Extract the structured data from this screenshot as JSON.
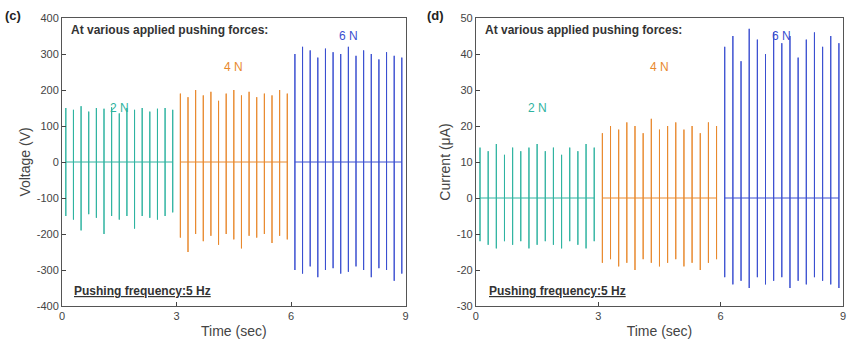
{
  "chart_data": [
    {
      "type": "line",
      "panel_label": "(c)",
      "annotations": [
        "At various applied pushing forces:",
        "Pushing frequency:5 Hz"
      ],
      "x_label": "Time (sec)",
      "y_label": "Voltage (V)",
      "xlim": [
        0,
        9
      ],
      "xticks": [
        0,
        3,
        6,
        9
      ],
      "ylim": [
        -400,
        400
      ],
      "yticks": [
        -400,
        -300,
        -200,
        -100,
        0,
        100,
        200,
        300,
        400
      ],
      "grid": false,
      "series": [
        {
          "name": "2 N",
          "color": "#2fb3a0",
          "x": [
            0.1,
            0.1,
            0.1,
            0.1,
            0.3,
            0.3,
            0.3,
            0.3,
            0.5,
            0.5,
            0.5,
            0.5,
            0.7,
            0.7,
            0.7,
            0.7,
            0.9,
            0.9,
            0.9,
            0.9,
            1.1,
            1.1,
            1.1,
            1.1,
            1.3,
            1.3,
            1.3,
            1.3,
            1.5,
            1.5,
            1.5,
            1.5,
            1.7,
            1.7,
            1.7,
            1.7,
            1.9,
            1.9,
            1.9,
            1.9,
            2.1,
            2.1,
            2.1,
            2.1,
            2.3,
            2.3,
            2.3,
            2.3,
            2.5,
            2.5,
            2.5,
            2.5,
            2.7,
            2.7,
            2.7,
            2.7,
            2.9,
            2.9,
            2.9,
            2.9
          ],
          "values": [
            0,
            150,
            -150,
            0,
            0,
            145,
            -160,
            0,
            0,
            155,
            -190,
            0,
            0,
            140,
            -145,
            0,
            0,
            150,
            -155,
            0,
            0,
            148,
            -200,
            0,
            0,
            152,
            -150,
            0,
            0,
            135,
            -160,
            0,
            0,
            150,
            -150,
            0,
            0,
            145,
            -185,
            0,
            0,
            150,
            -150,
            0,
            0,
            140,
            -155,
            0,
            0,
            148,
            -160,
            0,
            0,
            150,
            -150,
            0,
            0,
            145,
            -140,
            0
          ]
        },
        {
          "name": "4 N",
          "color": "#e8892e",
          "x": [
            3.1,
            3.1,
            3.1,
            3.1,
            3.3,
            3.3,
            3.3,
            3.3,
            3.5,
            3.5,
            3.5,
            3.5,
            3.7,
            3.7,
            3.7,
            3.7,
            3.9,
            3.9,
            3.9,
            3.9,
            4.1,
            4.1,
            4.1,
            4.1,
            4.3,
            4.3,
            4.3,
            4.3,
            4.5,
            4.5,
            4.5,
            4.5,
            4.7,
            4.7,
            4.7,
            4.7,
            4.9,
            4.9,
            4.9,
            4.9,
            5.1,
            5.1,
            5.1,
            5.1,
            5.3,
            5.3,
            5.3,
            5.3,
            5.5,
            5.5,
            5.5,
            5.5,
            5.7,
            5.7,
            5.7,
            5.7,
            5.9,
            5.9,
            5.9,
            5.9
          ],
          "values": [
            0,
            190,
            -210,
            0,
            0,
            180,
            -250,
            0,
            0,
            200,
            -200,
            0,
            0,
            185,
            -220,
            0,
            0,
            195,
            -205,
            0,
            0,
            170,
            -230,
            0,
            0,
            190,
            -200,
            0,
            0,
            200,
            -215,
            0,
            0,
            185,
            -240,
            0,
            0,
            195,
            -205,
            0,
            0,
            180,
            -210,
            0,
            0,
            190,
            -200,
            0,
            0,
            185,
            -225,
            0,
            0,
            200,
            -205,
            0,
            0,
            190,
            -215,
            0
          ]
        },
        {
          "name": "6 N",
          "color": "#3a4fd0",
          "x": [
            6.1,
            6.1,
            6.1,
            6.1,
            6.3,
            6.3,
            6.3,
            6.3,
            6.5,
            6.5,
            6.5,
            6.5,
            6.7,
            6.7,
            6.7,
            6.7,
            6.9,
            6.9,
            6.9,
            6.9,
            7.1,
            7.1,
            7.1,
            7.1,
            7.3,
            7.3,
            7.3,
            7.3,
            7.5,
            7.5,
            7.5,
            7.5,
            7.7,
            7.7,
            7.7,
            7.7,
            7.9,
            7.9,
            7.9,
            7.9,
            8.1,
            8.1,
            8.1,
            8.1,
            8.3,
            8.3,
            8.3,
            8.3,
            8.5,
            8.5,
            8.5,
            8.5,
            8.7,
            8.7,
            8.7,
            8.7,
            8.9,
            8.9,
            8.9,
            8.9
          ],
          "values": [
            0,
            300,
            -300,
            0,
            0,
            320,
            -310,
            0,
            0,
            310,
            -290,
            0,
            0,
            290,
            -320,
            0,
            0,
            315,
            -300,
            0,
            0,
            305,
            -295,
            0,
            0,
            300,
            -310,
            0,
            0,
            320,
            -305,
            0,
            0,
            295,
            -290,
            0,
            0,
            310,
            -300,
            0,
            0,
            300,
            -320,
            0,
            0,
            285,
            -295,
            0,
            0,
            305,
            -300,
            0,
            0,
            295,
            -330,
            0,
            0,
            290,
            -310,
            0
          ]
        }
      ]
    },
    {
      "type": "line",
      "panel_label": "(d)",
      "annotations": [
        "At various applied pushing forces:",
        "Pushing frequency:5 Hz"
      ],
      "x_label": "Time (sec)",
      "y_label": "Current (μA)",
      "xlim": [
        0,
        9
      ],
      "xticks": [
        0,
        3,
        6,
        9
      ],
      "ylim": [
        -30,
        50
      ],
      "yticks": [
        -30,
        -20,
        -10,
        0,
        10,
        20,
        30,
        40,
        50
      ],
      "grid": false,
      "series": [
        {
          "name": "2 N",
          "color": "#2fb3a0",
          "x": [
            0.1,
            0.1,
            0.1,
            0.1,
            0.3,
            0.3,
            0.3,
            0.3,
            0.5,
            0.5,
            0.5,
            0.5,
            0.7,
            0.7,
            0.7,
            0.7,
            0.9,
            0.9,
            0.9,
            0.9,
            1.1,
            1.1,
            1.1,
            1.1,
            1.3,
            1.3,
            1.3,
            1.3,
            1.5,
            1.5,
            1.5,
            1.5,
            1.7,
            1.7,
            1.7,
            1.7,
            1.9,
            1.9,
            1.9,
            1.9,
            2.1,
            2.1,
            2.1,
            2.1,
            2.3,
            2.3,
            2.3,
            2.3,
            2.5,
            2.5,
            2.5,
            2.5,
            2.7,
            2.7,
            2.7,
            2.7,
            2.9,
            2.9,
            2.9,
            2.9
          ],
          "values": [
            0,
            14,
            -12,
            0,
            0,
            13,
            -13,
            0,
            0,
            15,
            -14,
            0,
            0,
            12,
            -12,
            0,
            0,
            14,
            -13,
            0,
            0,
            13,
            -12,
            0,
            0,
            14,
            -14,
            0,
            0,
            15,
            -13,
            0,
            0,
            13,
            -12,
            0,
            0,
            14,
            -13,
            0,
            0,
            12,
            -14,
            0,
            0,
            14,
            -12,
            0,
            0,
            13,
            -13,
            0,
            0,
            15,
            -14,
            0,
            0,
            14,
            -12,
            0
          ]
        },
        {
          "name": "4 N",
          "color": "#e8892e",
          "x": [
            3.1,
            3.1,
            3.1,
            3.1,
            3.3,
            3.3,
            3.3,
            3.3,
            3.5,
            3.5,
            3.5,
            3.5,
            3.7,
            3.7,
            3.7,
            3.7,
            3.9,
            3.9,
            3.9,
            3.9,
            4.1,
            4.1,
            4.1,
            4.1,
            4.3,
            4.3,
            4.3,
            4.3,
            4.5,
            4.5,
            4.5,
            4.5,
            4.7,
            4.7,
            4.7,
            4.7,
            4.9,
            4.9,
            4.9,
            4.9,
            5.1,
            5.1,
            5.1,
            5.1,
            5.3,
            5.3,
            5.3,
            5.3,
            5.5,
            5.5,
            5.5,
            5.5,
            5.7,
            5.7,
            5.7,
            5.7,
            5.9,
            5.9,
            5.9,
            5.9
          ],
          "values": [
            0,
            18,
            -18,
            0,
            0,
            20,
            -17,
            0,
            0,
            19,
            -19,
            0,
            0,
            21,
            -18,
            0,
            0,
            20,
            -20,
            0,
            0,
            18,
            -17,
            0,
            0,
            22,
            -18,
            0,
            0,
            19,
            -19,
            0,
            0,
            20,
            -18,
            0,
            0,
            21,
            -17,
            0,
            0,
            19,
            -19,
            0,
            0,
            20,
            -18,
            0,
            0,
            18,
            -20,
            0,
            0,
            21,
            -18,
            0,
            0,
            20,
            -17,
            0
          ]
        },
        {
          "name": "6 N",
          "color": "#3a4fd0",
          "x": [
            6.1,
            6.1,
            6.1,
            6.1,
            6.3,
            6.3,
            6.3,
            6.3,
            6.5,
            6.5,
            6.5,
            6.5,
            6.7,
            6.7,
            6.7,
            6.7,
            6.9,
            6.9,
            6.9,
            6.9,
            7.1,
            7.1,
            7.1,
            7.1,
            7.3,
            7.3,
            7.3,
            7.3,
            7.5,
            7.5,
            7.5,
            7.5,
            7.7,
            7.7,
            7.7,
            7.7,
            7.9,
            7.9,
            7.9,
            7.9,
            8.1,
            8.1,
            8.1,
            8.1,
            8.3,
            8.3,
            8.3,
            8.3,
            8.5,
            8.5,
            8.5,
            8.5,
            8.7,
            8.7,
            8.7,
            8.7,
            8.9,
            8.9,
            8.9,
            8.9
          ],
          "values": [
            0,
            42,
            -22,
            0,
            0,
            45,
            -24,
            0,
            0,
            38,
            -23,
            0,
            0,
            47,
            -25,
            0,
            0,
            44,
            -22,
            0,
            0,
            40,
            -24,
            0,
            0,
            46,
            -23,
            0,
            0,
            43,
            -22,
            0,
            0,
            45,
            -25,
            0,
            0,
            39,
            -23,
            0,
            0,
            44,
            -24,
            0,
            0,
            46,
            -22,
            0,
            0,
            42,
            -23,
            0,
            0,
            45,
            -24,
            0,
            0,
            43,
            -25,
            0
          ]
        }
      ]
    }
  ]
}
